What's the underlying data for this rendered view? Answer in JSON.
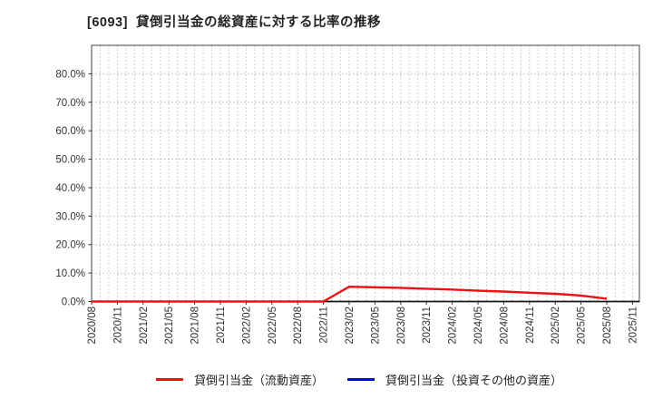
{
  "window": {
    "title": "[6093]  貸倒引当金の総資産に対する比率の推移"
  },
  "colors": {
    "series_current": "#ee1111",
    "series_invest": "#0000ee",
    "grid": "#bbbbbb",
    "plot_border": "#606060",
    "axis": "#1a1a1a",
    "tick_text": "#333333"
  },
  "legend": [
    {
      "label": "貸倒引当金（流動資産）",
      "color": "#ee1111"
    },
    {
      "label": "貸倒引当金（投資その他の資産）",
      "color": "#0000ee"
    }
  ],
  "chart_data": {
    "type": "line",
    "title": "[6093]  貸倒引当金の総資産に対する比率の推移",
    "categories": [
      "2020/08",
      "2020/11",
      "2021/02",
      "2021/05",
      "2021/08",
      "2021/11",
      "2022/02",
      "2022/05",
      "2022/08",
      "2022/11",
      "2023/02",
      "2023/05",
      "2023/08",
      "2023/11",
      "2024/02",
      "2024/05",
      "2024/08",
      "2024/11",
      "2025/02",
      "2025/05",
      "2025/08",
      "2025/11"
    ],
    "series": [
      {
        "id": "allowance-current-assets",
        "name": "貸倒引当金（流動資産）",
        "color": "#ee1111",
        "values": [
          0.0,
          0.0,
          0.0,
          0.0,
          0.0,
          0.0,
          0.0,
          0.0,
          0.0,
          0.0,
          5.2,
          5.0,
          4.8,
          4.5,
          4.2,
          3.8,
          3.5,
          3.1,
          2.7,
          2.1,
          1.0,
          null
        ]
      },
      {
        "id": "allowance-investments",
        "name": "貸倒引当金（投資その他の資産）",
        "color": "#0000ee",
        "values": [
          null,
          null,
          null,
          null,
          null,
          null,
          null,
          null,
          null,
          null,
          null,
          null,
          null,
          null,
          null,
          null,
          null,
          null,
          null,
          null,
          null,
          null
        ]
      }
    ],
    "ylabel": "",
    "xlabel": "",
    "ylim": [
      0,
      90
    ],
    "yticks": [
      "0.0%",
      "10.0%",
      "20.0%",
      "30.0%",
      "40.0%",
      "50.0%",
      "60.0%",
      "70.0%",
      "80.0%"
    ],
    "grid": true,
    "minor_vertical_grid": "monthly",
    "legend_position": "bottom"
  }
}
